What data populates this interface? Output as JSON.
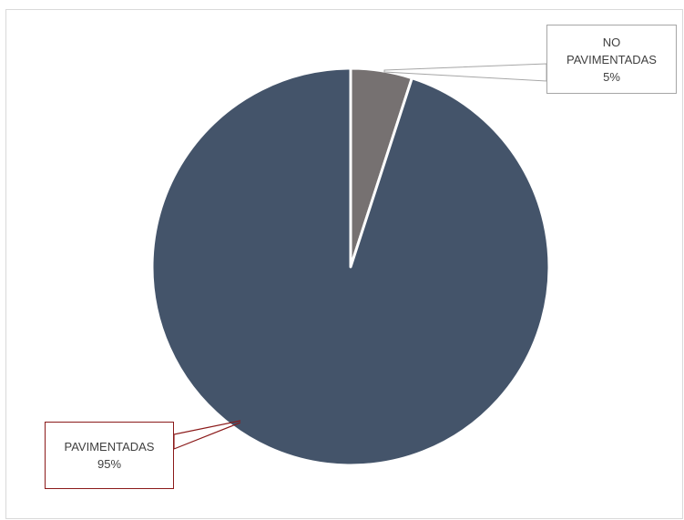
{
  "chart_data": {
    "type": "pie",
    "title": "",
    "slices": [
      {
        "category": "NO PAVIMENTADAS",
        "category_lines": [
          "NO",
          "PAVIMENTADAS"
        ],
        "percent_label": "5%",
        "value": 5,
        "color": "#767171"
      },
      {
        "category": "PAVIMENTADAS",
        "category_lines": [
          "PAVIMENTADAS"
        ],
        "percent_label": "95%",
        "value": 95,
        "color": "#44546a"
      }
    ],
    "legend": "none",
    "data_labels": "callouts with leader lines"
  }
}
